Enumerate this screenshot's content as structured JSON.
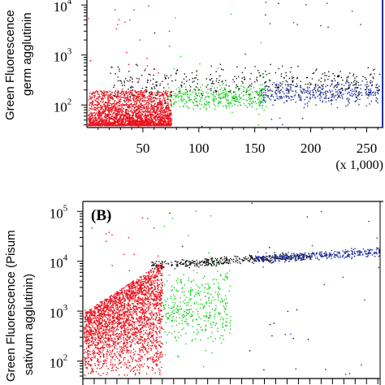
{
  "colors": {
    "red": "#e8121c",
    "green": "#15d21c",
    "black": "#111111",
    "blue": "#1d2f9e",
    "axis": "#000000",
    "background": "#ffffff"
  },
  "chart_data": [
    {
      "type": "scatter",
      "panel_label": "",
      "ylabel_lines": [
        "Green Fluorescence",
        "germ agglutinin"
      ],
      "x_scale": "linear",
      "y_scale": "log",
      "xlim": [
        0,
        262
      ],
      "xticks": [
        50,
        100,
        150,
        200,
        250
      ],
      "xtick_labels": [
        "50",
        "100",
        "150",
        "200",
        "250"
      ],
      "x_unit_label": "(x 1,000)",
      "ylim_log10": [
        1.55,
        4.1
      ],
      "yticks": [
        {
          "base": "10",
          "exp": "2",
          "log10": 2
        },
        {
          "base": "10",
          "exp": "3",
          "log10": 3
        },
        {
          "base": "10",
          "exp": "4",
          "log10": 4
        }
      ],
      "series": [
        {
          "color_key": "red",
          "x_range": [
            0,
            75
          ],
          "log_range": [
            1.6,
            2.3
          ],
          "dense": true
        },
        {
          "color_key": "green",
          "x_range": [
            72,
            160
          ],
          "log_range": [
            1.8,
            2.5
          ]
        },
        {
          "color_key": "blue",
          "x_range": [
            155,
            262
          ],
          "log_range": [
            1.9,
            2.6
          ]
        },
        {
          "color_key": "black",
          "x_range": [
            20,
            262
          ],
          "log_range": [
            2.0,
            2.9
          ]
        }
      ]
    },
    {
      "type": "scatter",
      "panel_label": "(B)",
      "ylabel_lines": [
        "Green Fluorescence (Pisum",
        "sativum agglutinin)"
      ],
      "x_scale": "linear",
      "y_scale": "log",
      "xlim": [
        0,
        262
      ],
      "xticks": [],
      "xtick_labels": [],
      "ylim_log10": [
        1.65,
        5.2
      ],
      "yticks": [
        {
          "base": "10",
          "exp": "2",
          "log10": 2
        },
        {
          "base": "10",
          "exp": "3",
          "log10": 3
        },
        {
          "base": "10",
          "exp": "4",
          "log10": 4
        },
        {
          "base": "10",
          "exp": "5",
          "log10": 5
        }
      ],
      "series": [
        {
          "color_key": "red",
          "x_range": [
            0,
            70
          ],
          "log_range": [
            1.7,
            4.0
          ],
          "dense": true
        },
        {
          "color_key": "black",
          "x_range": [
            60,
            200
          ],
          "log_range": [
            3.8,
            4.25
          ]
        },
        {
          "color_key": "green",
          "x_range": [
            70,
            130
          ],
          "log_range": [
            2.0,
            4.1
          ]
        },
        {
          "color_key": "blue",
          "x_range": [
            150,
            262
          ],
          "log_range": [
            3.9,
            4.35
          ]
        }
      ]
    }
  ]
}
